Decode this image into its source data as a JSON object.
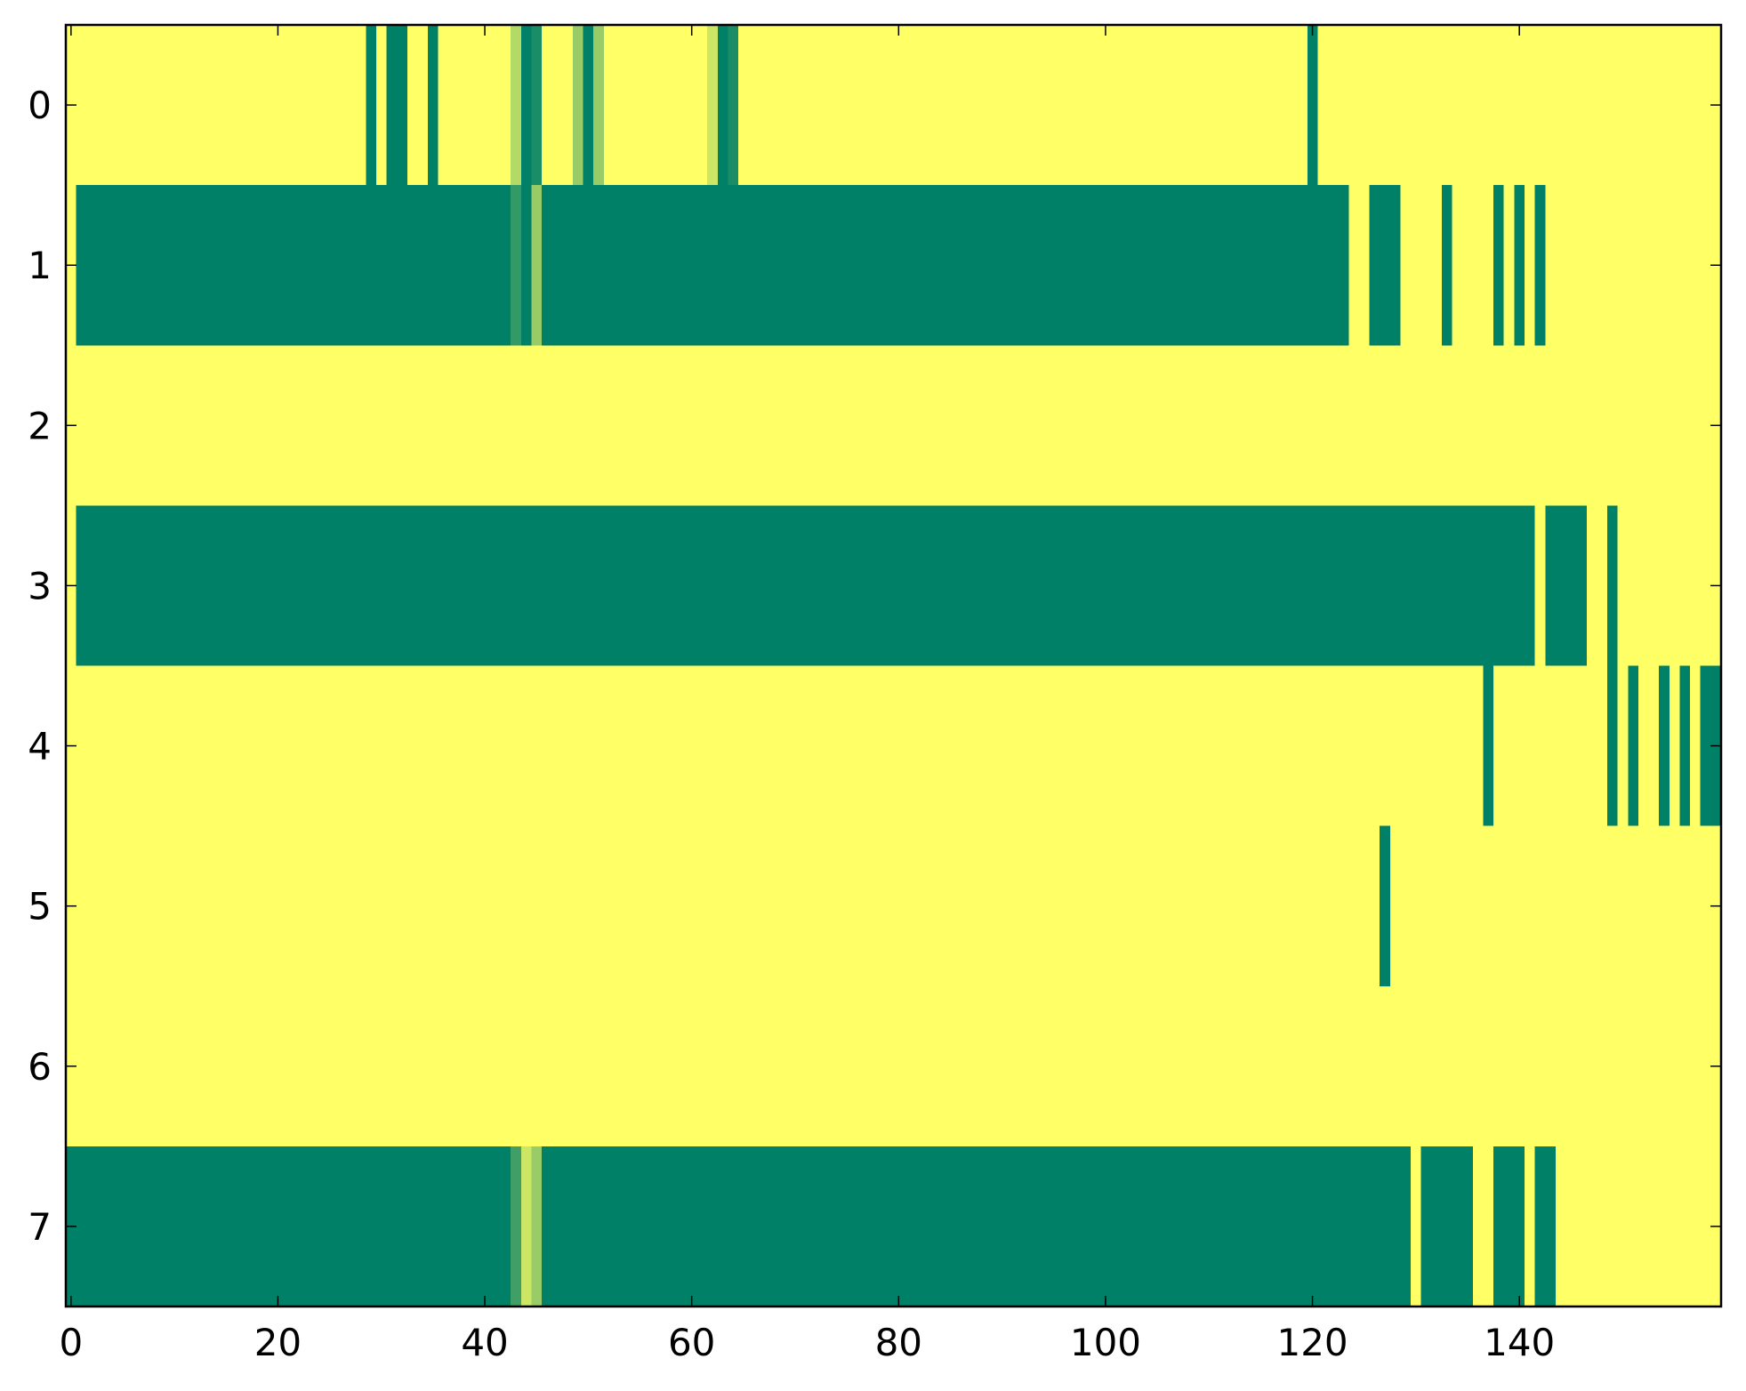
{
  "chart_data": {
    "type": "heatmap",
    "colormap": "summer",
    "clim": [
      0,
      1
    ],
    "xlim": [
      -0.5,
      159.5
    ],
    "ylim": [
      7.5,
      -0.5
    ],
    "xticks": [
      0,
      20,
      40,
      60,
      80,
      100,
      120,
      140
    ],
    "yticks": [
      0,
      1,
      2,
      3,
      4,
      5,
      6,
      7
    ],
    "z": [
      [
        1,
        1,
        1,
        1,
        1,
        1,
        1,
        1,
        1,
        1,
        1,
        1,
        1,
        1,
        1,
        1,
        1,
        1,
        1,
        1,
        1,
        1,
        1,
        1,
        1,
        1,
        1,
        1,
        1,
        0,
        1,
        0,
        0,
        1,
        1,
        0,
        1,
        1,
        1,
        1,
        1,
        1,
        1,
        0.7,
        0,
        0.1,
        1,
        1,
        1,
        0.6,
        0,
        0.6,
        1,
        1,
        1,
        1,
        1,
        1,
        1,
        1,
        1,
        1,
        0.8,
        0,
        0.1,
        1,
        1,
        1,
        1,
        1,
        1,
        1,
        1,
        1,
        1,
        1,
        1,
        1,
        1,
        1,
        1,
        1,
        1,
        1,
        1,
        1,
        1,
        1,
        1,
        1,
        1,
        1,
        1,
        1,
        1,
        1,
        1,
        1,
        1,
        1,
        1,
        1,
        1,
        1,
        1,
        1,
        1,
        1,
        1,
        1,
        1,
        1,
        1,
        1,
        1,
        1,
        1,
        1,
        1,
        1,
        0,
        1,
        1,
        1,
        1,
        1,
        1,
        1,
        1,
        1,
        1,
        1,
        1,
        1,
        1,
        1,
        1,
        1,
        1,
        1,
        1,
        1,
        1,
        1,
        1,
        1,
        1,
        1,
        1,
        1,
        1,
        1,
        1,
        1,
        1,
        1,
        1,
        1,
        1,
        1
      ],
      [
        1,
        0,
        0,
        0,
        0,
        0,
        0,
        0,
        0,
        0,
        0,
        0,
        0,
        0,
        0,
        0,
        0,
        0,
        0,
        0,
        0,
        0,
        0,
        0,
        0,
        0,
        0,
        0,
        0,
        0,
        0,
        0,
        0,
        0,
        0,
        0,
        0,
        0,
        0,
        0,
        0,
        0,
        0,
        0.2,
        0,
        0.6,
        0,
        0,
        0,
        0,
        0,
        0,
        0,
        0,
        0,
        0,
        0,
        0,
        0,
        0,
        0,
        0,
        0,
        0,
        0,
        0,
        0,
        0,
        0,
        0,
        0,
        0,
        0,
        0,
        0,
        0,
        0,
        0,
        0,
        0,
        0,
        0,
        0,
        0,
        0,
        0,
        0,
        0,
        0,
        0,
        0,
        0,
        0,
        0,
        0,
        0,
        0,
        0,
        0,
        0,
        0,
        0,
        0,
        0,
        0,
        0,
        0,
        0,
        0,
        0,
        0,
        0,
        0,
        0,
        0,
        0,
        0,
        0,
        0,
        0,
        0,
        0,
        0,
        0,
        1,
        1,
        0,
        0,
        0,
        1,
        1,
        1,
        1,
        0,
        1,
        1,
        1,
        1,
        0,
        1,
        0,
        1,
        0,
        1,
        1,
        1,
        1,
        1,
        1,
        1,
        1,
        1,
        1,
        1,
        1,
        1,
        1,
        1,
        1,
        1
      ],
      [
        1,
        1,
        1,
        1,
        1,
        1,
        1,
        1,
        1,
        1,
        1,
        1,
        1,
        1,
        1,
        1,
        1,
        1,
        1,
        1,
        1,
        1,
        1,
        1,
        1,
        1,
        1,
        1,
        1,
        1,
        1,
        1,
        1,
        1,
        1,
        1,
        1,
        1,
        1,
        1,
        1,
        1,
        1,
        1,
        1,
        1,
        1,
        1,
        1,
        1,
        1,
        1,
        1,
        1,
        1,
        1,
        1,
        1,
        1,
        1,
        1,
        1,
        1,
        1,
        1,
        1,
        1,
        1,
        1,
        1,
        1,
        1,
        1,
        1,
        1,
        1,
        1,
        1,
        1,
        1,
        1,
        1,
        1,
        1,
        1,
        1,
        1,
        1,
        1,
        1,
        1,
        1,
        1,
        1,
        1,
        1,
        1,
        1,
        1,
        1,
        1,
        1,
        1,
        1,
        1,
        1,
        1,
        1,
        1,
        1,
        1,
        1,
        1,
        1,
        1,
        1,
        1,
        1,
        1,
        1,
        1,
        1,
        1,
        1,
        1,
        1,
        1,
        1,
        1,
        1,
        1,
        1,
        1,
        1,
        1,
        1,
        1,
        1,
        1,
        1,
        1,
        1,
        1,
        1,
        1,
        1,
        1,
        1,
        1,
        1,
        1,
        1,
        1,
        1,
        1,
        1,
        1,
        1,
        1,
        1
      ],
      [
        1,
        0,
        0,
        0,
        0,
        0,
        0,
        0,
        0,
        0,
        0,
        0,
        0,
        0,
        0,
        0,
        0,
        0,
        0,
        0,
        0,
        0,
        0,
        0,
        0,
        0,
        0,
        0,
        0,
        0,
        0,
        0,
        0,
        0,
        0,
        0,
        0,
        0,
        0,
        0,
        0,
        0,
        0,
        0,
        0,
        0,
        0,
        0,
        0,
        0,
        0,
        0,
        0,
        0,
        0,
        0,
        0,
        0,
        0,
        0,
        0,
        0,
        0,
        0,
        0,
        0,
        0,
        0,
        0,
        0,
        0,
        0,
        0,
        0,
        0,
        0,
        0,
        0,
        0,
        0,
        0,
        0,
        0,
        0,
        0,
        0,
        0,
        0,
        0,
        0,
        0,
        0,
        0,
        0,
        0,
        0,
        0,
        0,
        0,
        0,
        0,
        0,
        0,
        0,
        0,
        0,
        0,
        0,
        0,
        0,
        0,
        0,
        0,
        0,
        0,
        0,
        0,
        0,
        0,
        0,
        0,
        0,
        0,
        0,
        0,
        0,
        0,
        0,
        0,
        0,
        0,
        0,
        0,
        0,
        0,
        0,
        0,
        0,
        0,
        0,
        0,
        0,
        1,
        0,
        0,
        0,
        0,
        1,
        1,
        0,
        1,
        1,
        1,
        1,
        1,
        1,
        1,
        1,
        1,
        1
      ],
      [
        1,
        1,
        1,
        1,
        1,
        1,
        1,
        1,
        1,
        1,
        1,
        1,
        1,
        1,
        1,
        1,
        1,
        1,
        1,
        1,
        1,
        1,
        1,
        1,
        1,
        1,
        1,
        1,
        1,
        1,
        1,
        1,
        1,
        1,
        1,
        1,
        1,
        1,
        1,
        1,
        1,
        1,
        1,
        1,
        1,
        1,
        1,
        1,
        1,
        1,
        1,
        1,
        1,
        1,
        1,
        1,
        1,
        1,
        1,
        1,
        1,
        1,
        1,
        1,
        1,
        1,
        1,
        1,
        1,
        1,
        1,
        1,
        1,
        1,
        1,
        1,
        1,
        1,
        1,
        1,
        1,
        1,
        1,
        1,
        1,
        1,
        1,
        1,
        1,
        1,
        1,
        1,
        1,
        1,
        1,
        1,
        1,
        1,
        1,
        1,
        1,
        1,
        1,
        1,
        1,
        1,
        1,
        1,
        1,
        1,
        1,
        1,
        1,
        1,
        1,
        1,
        1,
        1,
        1,
        1,
        1,
        1,
        1,
        1,
        1,
        1,
        1,
        1,
        1,
        1,
        1,
        1,
        1,
        1,
        1,
        1,
        1,
        0,
        1,
        1,
        1,
        1,
        1,
        1,
        1,
        1,
        1,
        1,
        1,
        0,
        1,
        0,
        1,
        1,
        0,
        1,
        0,
        1,
        0,
        0
      ],
      [
        1,
        1,
        1,
        1,
        1,
        1,
        1,
        1,
        1,
        1,
        1,
        1,
        1,
        1,
        1,
        1,
        1,
        1,
        1,
        1,
        1,
        1,
        1,
        1,
        1,
        1,
        1,
        1,
        1,
        1,
        1,
        1,
        1,
        1,
        1,
        1,
        1,
        1,
        1,
        1,
        1,
        1,
        1,
        1,
        1,
        1,
        1,
        1,
        1,
        1,
        1,
        1,
        1,
        1,
        1,
        1,
        1,
        1,
        1,
        1,
        1,
        1,
        1,
        1,
        1,
        1,
        1,
        1,
        1,
        1,
        1,
        1,
        1,
        1,
        1,
        1,
        1,
        1,
        1,
        1,
        1,
        1,
        1,
        1,
        1,
        1,
        1,
        1,
        1,
        1,
        1,
        1,
        1,
        1,
        1,
        1,
        1,
        1,
        1,
        1,
        1,
        1,
        1,
        1,
        1,
        1,
        1,
        1,
        1,
        1,
        1,
        1,
        1,
        1,
        1,
        1,
        1,
        1,
        1,
        1,
        1,
        1,
        1,
        1,
        1,
        1,
        1,
        0,
        1,
        1,
        1,
        1,
        1,
        1,
        1,
        1,
        1,
        1,
        1,
        1,
        1,
        1,
        1,
        1,
        1,
        1,
        1,
        1,
        1,
        1,
        1,
        1,
        1,
        1,
        1,
        1,
        1,
        1,
        1,
        1
      ],
      [
        1,
        1,
        1,
        1,
        1,
        1,
        1,
        1,
        1,
        1,
        1,
        1,
        1,
        1,
        1,
        1,
        1,
        1,
        1,
        1,
        1,
        1,
        1,
        1,
        1,
        1,
        1,
        1,
        1,
        1,
        1,
        1,
        1,
        1,
        1,
        1,
        1,
        1,
        1,
        1,
        1,
        1,
        1,
        1,
        1,
        1,
        1,
        1,
        1,
        1,
        1,
        1,
        1,
        1,
        1,
        1,
        1,
        1,
        1,
        1,
        1,
        1,
        1,
        1,
        1,
        1,
        1,
        1,
        1,
        1,
        1,
        1,
        1,
        1,
        1,
        1,
        1,
        1,
        1,
        1,
        1,
        1,
        1,
        1,
        1,
        1,
        1,
        1,
        1,
        1,
        1,
        1,
        1,
        1,
        1,
        1,
        1,
        1,
        1,
        1,
        1,
        1,
        1,
        1,
        1,
        1,
        1,
        1,
        1,
        1,
        1,
        1,
        1,
        1,
        1,
        1,
        1,
        1,
        1,
        1,
        1,
        1,
        1,
        1,
        1,
        1,
        1,
        1,
        1,
        1,
        1,
        1,
        1,
        1,
        1,
        1,
        1,
        1,
        1,
        1,
        1,
        1,
        1,
        1,
        1,
        1,
        1,
        1,
        1,
        1,
        1,
        1,
        1,
        1,
        1,
        1,
        1,
        1,
        1,
        1
      ],
      [
        0,
        0,
        0,
        0,
        0,
        0,
        0,
        0,
        0,
        0,
        0,
        0,
        0,
        0,
        0,
        0,
        0,
        0,
        0,
        0,
        0,
        0,
        0,
        0,
        0,
        0,
        0,
        0,
        0,
        0,
        0,
        0,
        0,
        0,
        0,
        0,
        0,
        0,
        0,
        0,
        0,
        0,
        0,
        0.25,
        0.8,
        0.6,
        0,
        0,
        0,
        0,
        0,
        0,
        0,
        0,
        0,
        0,
        0,
        0,
        0,
        0,
        0,
        0,
        0,
        0,
        0,
        0,
        0,
        0,
        0,
        0,
        0,
        0,
        0,
        0,
        0,
        0,
        0,
        0,
        0,
        0,
        0,
        0,
        0,
        0,
        0,
        0,
        0,
        0,
        0,
        0,
        0,
        0,
        0,
        0,
        0,
        0,
        0,
        0,
        0,
        0,
        0,
        0,
        0,
        0,
        0,
        0,
        0,
        0,
        0,
        0,
        0,
        0,
        0,
        0,
        0,
        0,
        0,
        0,
        0,
        0,
        0,
        0,
        0,
        0,
        0,
        0,
        0,
        0,
        0,
        0,
        1,
        0,
        0,
        0,
        0,
        0,
        1,
        1,
        0,
        0,
        0,
        1,
        0,
        0,
        1,
        1,
        1,
        1,
        1,
        1,
        1,
        1,
        1,
        1,
        1,
        1,
        1,
        1,
        1,
        1
      ]
    ]
  }
}
